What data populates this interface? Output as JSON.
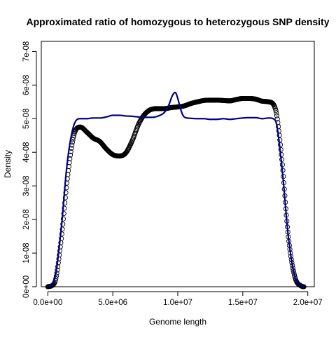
{
  "chart_data": {
    "type": "line",
    "title": "Approximated ratio of homozygous to heterozygous SNP density",
    "xlabel": "Genome length",
    "ylabel": "Density",
    "xlim": [
      -500000,
      20500000
    ],
    "ylim": [
      0,
      7.3e-08
    ],
    "x_ticks": [
      {
        "value": 0,
        "label": "0.0e+00"
      },
      {
        "value": 5000000,
        "label": "5.0e+06"
      },
      {
        "value": 10000000,
        "label": "1.0e+07"
      },
      {
        "value": 15000000,
        "label": "1.5e+07"
      },
      {
        "value": 20000000,
        "label": "2.0e+07"
      }
    ],
    "y_ticks": [
      {
        "value": 0,
        "label": "0e+00"
      },
      {
        "value": 1e-08,
        "label": "1e-08"
      },
      {
        "value": 2e-08,
        "label": "2e-08"
      },
      {
        "value": 3e-08,
        "label": "3e-08"
      },
      {
        "value": 4e-08,
        "label": "4e-08"
      },
      {
        "value": 5e-08,
        "label": "5e-08"
      },
      {
        "value": 6e-08,
        "label": "6e-08"
      },
      {
        "value": 7e-08,
        "label": "7e-08"
      }
    ],
    "grid": false,
    "legend": "none",
    "series": [
      {
        "style": "open-circles",
        "color": "#000000",
        "x": [
          0,
          500000,
          1000000,
          1500000,
          2000000,
          2500000,
          3000000,
          3500000,
          4000000,
          4500000,
          5000000,
          5500000,
          6000000,
          6500000,
          7000000,
          7500000,
          8000000,
          8500000,
          9000000,
          9500000,
          10000000,
          10500000,
          11000000,
          11500000,
          12000000,
          12500000,
          13000000,
          13500000,
          14000000,
          14500000,
          15000000,
          15500000,
          16000000,
          16500000,
          17000000,
          17500000,
          18000000,
          18500000,
          19000000,
          19500000,
          19700000
        ],
        "values": [
          0.0,
          1e-09,
          1.3e-08,
          3.2e-08,
          4.5e-08,
          4.75e-08,
          4.6e-08,
          4.42e-08,
          4.32e-08,
          4.1e-08,
          3.93e-08,
          3.89e-08,
          3.98e-08,
          4.35e-08,
          4.85e-08,
          5.15e-08,
          5.28e-08,
          5.3e-08,
          5.3e-08,
          5.33e-08,
          5.35e-08,
          5.38e-08,
          5.45e-08,
          5.5e-08,
          5.54e-08,
          5.55e-08,
          5.55e-08,
          5.54e-08,
          5.53e-08,
          5.57e-08,
          5.6e-08,
          5.6e-08,
          5.58e-08,
          5.52e-08,
          5.5e-08,
          5.3e-08,
          3.8e-08,
          1.5e-08,
          3e-09,
          2e-10,
          0.0
        ]
      },
      {
        "style": "line",
        "color": "#00008B",
        "x": [
          0,
          500000,
          1000000,
          1500000,
          2000000,
          2500000,
          3000000,
          3500000,
          4000000,
          4500000,
          5000000,
          5500000,
          6000000,
          6500000,
          7000000,
          7500000,
          8000000,
          8500000,
          9000000,
          9300000,
          9600000,
          9800000,
          10000000,
          10200000,
          10500000,
          11000000,
          11500000,
          12000000,
          12500000,
          13000000,
          13500000,
          14000000,
          14500000,
          15000000,
          15500000,
          16000000,
          16500000,
          17000000,
          17500000,
          18000000,
          18500000,
          19000000,
          19500000,
          19700000
        ],
        "values": [
          0.0,
          2e-09,
          1.6e-08,
          3.7e-08,
          4.8e-08,
          5e-08,
          5e-08,
          5.02e-08,
          5.02e-08,
          5.05e-08,
          5.1e-08,
          5.1e-08,
          5.08e-08,
          5.07e-08,
          5.05e-08,
          5.04e-08,
          5.04e-08,
          5.08e-08,
          5.2e-08,
          5.4e-08,
          5.7e-08,
          5.78e-08,
          5.6e-08,
          5.3e-08,
          5.05e-08,
          5.01e-08,
          5e-08,
          5e-08,
          4.98e-08,
          4.98e-08,
          5e-08,
          4.98e-08,
          5e-08,
          5.02e-08,
          5.03e-08,
          5.03e-08,
          5e-08,
          5.02e-08,
          4.95e-08,
          3.6e-08,
          1.5e-08,
          3e-09,
          3e-10,
          0.0
        ]
      }
    ]
  }
}
